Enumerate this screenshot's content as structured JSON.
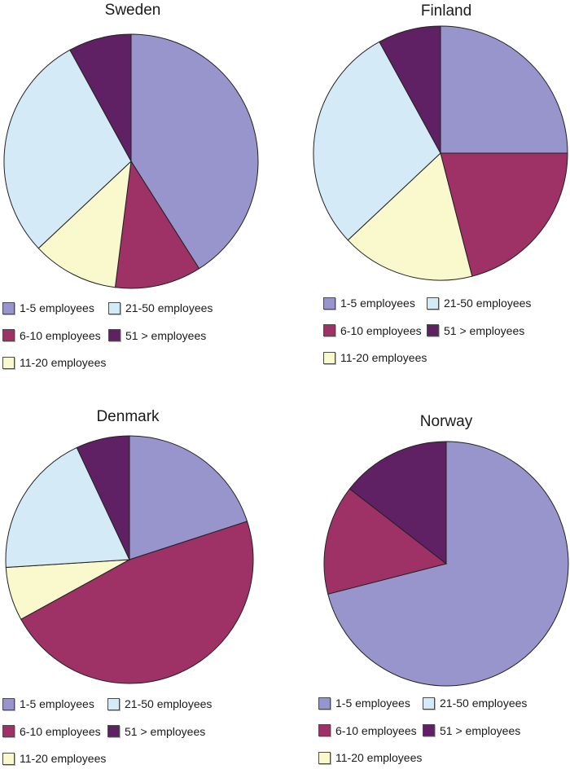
{
  "page": {
    "background": "#ffffff",
    "text_color": "#1a1a1a",
    "slice_outline_color": "#222222"
  },
  "palette": {
    "1-5 employees": "#9795CB",
    "6-10 employees": "#9E3166",
    "11-20 employees": "#FAF8CD",
    "21-50 employees": "#D4EAF6",
    "51 > employees": "#5F2064"
  },
  "chart_data": [
    {
      "type": "pie",
      "title": "Sweden",
      "categories": [
        "1-5 employees",
        "6-10 employees",
        "11-20 employees",
        "21-50 employees",
        "51 > employees"
      ],
      "values": [
        41,
        11,
        11,
        29,
        8
      ],
      "unit": "percent",
      "colors": [
        "#9795CB",
        "#9E3166",
        "#FAF8CD",
        "#D4EAF6",
        "#5F2064"
      ],
      "start_angle_deg": 0,
      "direction": "clockwise",
      "legend_position": "bottom"
    },
    {
      "type": "pie",
      "title": "Finland",
      "categories": [
        "1-5 employees",
        "6-10 employees",
        "11-20 employees",
        "21-50 employees",
        "51 > employees"
      ],
      "values": [
        25,
        21,
        17,
        29,
        8
      ],
      "unit": "percent",
      "colors": [
        "#9795CB",
        "#9E3166",
        "#FAF8CD",
        "#D4EAF6",
        "#5F2064"
      ],
      "start_angle_deg": 0,
      "direction": "clockwise",
      "legend_position": "bottom"
    },
    {
      "type": "pie",
      "title": "Denmark",
      "categories": [
        "1-5 employees",
        "6-10 employees",
        "11-20 employees",
        "21-50 employees",
        "51 > employees"
      ],
      "values": [
        20,
        47,
        7,
        19,
        7
      ],
      "unit": "percent",
      "colors": [
        "#9795CB",
        "#9E3166",
        "#FAF8CD",
        "#D4EAF6",
        "#5F2064"
      ],
      "start_angle_deg": 0,
      "direction": "clockwise",
      "legend_position": "bottom"
    },
    {
      "type": "pie",
      "title": "Norway",
      "categories": [
        "1-5 employees",
        "6-10 employees",
        "11-20 employees",
        "21-50 employees",
        "51 > employees"
      ],
      "values": [
        71,
        14.5,
        0,
        0,
        14.5
      ],
      "unit": "percent",
      "colors": [
        "#9795CB",
        "#9E3166",
        "#FAF8CD",
        "#D4EAF6",
        "#5F2064"
      ],
      "start_angle_deg": 0,
      "direction": "clockwise",
      "legend_position": "bottom"
    }
  ]
}
